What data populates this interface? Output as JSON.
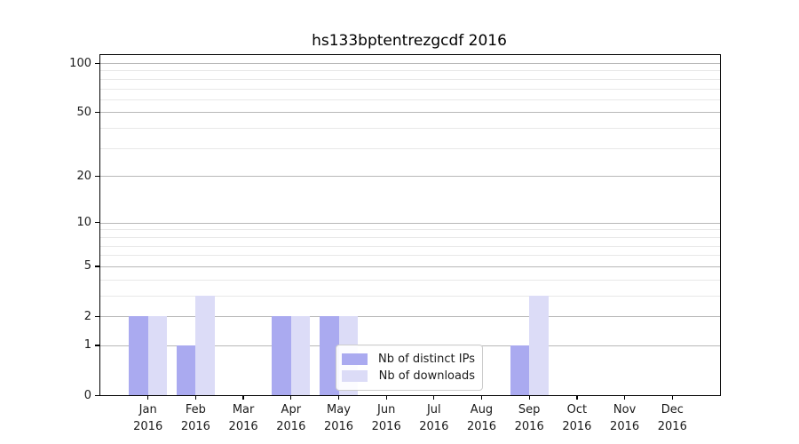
{
  "title": "hs133bptentrezgcdf 2016",
  "chart_data": {
    "type": "bar",
    "title": "hs133bptentrezgcdf 2016",
    "categories": [
      "Jan",
      "Feb",
      "Mar",
      "Apr",
      "May",
      "Jun",
      "Jul",
      "Aug",
      "Sep",
      "Oct",
      "Nov",
      "Dec"
    ],
    "year_label": "2016",
    "series": [
      {
        "name": "Nb of distinct IPs",
        "color": "#aaaaf0",
        "values": [
          2,
          1,
          0,
          2,
          2,
          0,
          0,
          0,
          1,
          0,
          0,
          0
        ]
      },
      {
        "name": "Nb of downloads",
        "color": "#dcdcf7",
        "values": [
          2,
          3,
          0,
          2,
          2,
          0,
          0,
          0,
          3,
          0,
          0,
          0
        ]
      }
    ],
    "y_scale": "log1p",
    "ylim": [
      0,
      100
    ],
    "y_major_ticks": [
      0,
      1,
      2,
      5,
      10,
      20,
      50,
      100
    ],
    "y_minor_ticks": [
      3,
      4,
      6,
      7,
      8,
      9,
      30,
      40,
      60,
      70,
      80,
      90
    ],
    "grid": "horizontal",
    "legend_position": "lower-center",
    "colors": {
      "major_gridline": "#b8b8b8",
      "minor_gridline": "#e8e8e8",
      "axis": "#000000",
      "text": "#1a1a1a"
    }
  }
}
